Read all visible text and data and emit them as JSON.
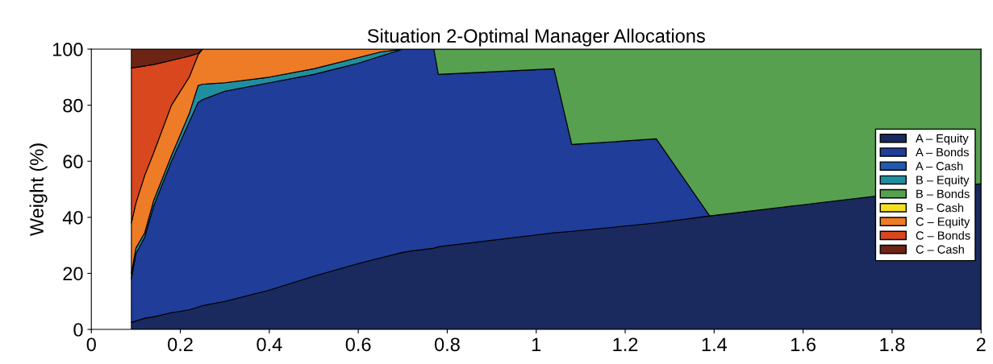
{
  "chart_data": {
    "type": "area",
    "stacked": true,
    "title": "Situation 2-Optimal Manager Allocations",
    "ylabel": "Weight (%)",
    "x": [
      0.09,
      0.1,
      0.12,
      0.14,
      0.18,
      0.22,
      0.24,
      0.25,
      0.3,
      0.4,
      0.5,
      0.6,
      0.65,
      0.7,
      0.72,
      0.77,
      0.78,
      1.04,
      1.08,
      1.27,
      1.39,
      1.6,
      2.0
    ],
    "series": [
      {
        "name": "A – Equity",
        "color": "#1a2a5e",
        "values": [
          2.5,
          3,
          4,
          4.5,
          6,
          7,
          8,
          8.5,
          10,
          14,
          19,
          23.5,
          25.5,
          27.5,
          28,
          29,
          29.5,
          34.5,
          35,
          38,
          40.5,
          44.5,
          52
        ]
      },
      {
        "name": "A – Bonds",
        "color": "#1f3d99",
        "values": [
          15.5,
          24,
          29,
          39.5,
          54,
          67,
          73,
          73.5,
          75,
          74,
          72,
          71.5,
          72,
          72.5,
          72,
          71,
          61.5,
          58.5,
          31,
          30,
          0,
          null,
          null
        ]
      },
      {
        "name": "A – Cash",
        "color": "#2158b0",
        "values": [
          null,
          null,
          null,
          null,
          null,
          null,
          null,
          null,
          null,
          null,
          null,
          null,
          null,
          null,
          null,
          null,
          null,
          null,
          null,
          null,
          null,
          null,
          null
        ]
      },
      {
        "name": "B – Equity",
        "color": "#1f8fa0",
        "values": [
          2,
          2,
          1.5,
          2,
          2,
          3,
          6,
          5.5,
          3,
          2,
          2,
          2,
          1.5,
          0,
          null,
          null,
          null,
          null,
          null,
          null,
          null,
          null,
          null
        ]
      },
      {
        "name": "B – Bonds",
        "color": "#56a050",
        "values": [
          null,
          null,
          null,
          null,
          null,
          null,
          null,
          null,
          null,
          null,
          null,
          null,
          null,
          null,
          null,
          0,
          9,
          7,
          34,
          32,
          59.5,
          55.5,
          48
        ]
      },
      {
        "name": "B – Cash",
        "color": "#f5e020",
        "values": [
          null,
          null,
          null,
          null,
          null,
          null,
          null,
          null,
          null,
          null,
          null,
          null,
          null,
          null,
          null,
          null,
          null,
          null,
          null,
          null,
          null,
          null,
          null
        ]
      },
      {
        "name": "C – Equity",
        "color": "#ee7b25",
        "values": [
          18,
          16,
          20.5,
          17,
          18,
          13,
          11,
          12.5,
          12,
          10,
          7,
          3,
          1,
          0,
          null,
          null,
          null,
          null,
          null,
          null,
          null,
          null,
          null
        ]
      },
      {
        "name": "C – Bonds",
        "color": "#d9471f",
        "values": [
          55.3,
          48.5,
          39,
          31.5,
          16,
          7.5,
          0.5,
          0,
          null,
          null,
          null,
          null,
          null,
          null,
          null,
          null,
          null,
          null,
          null,
          null,
          null,
          null,
          null
        ]
      },
      {
        "name": "C – Cash",
        "color": "#6e2414",
        "values": [
          6.7,
          6.5,
          6,
          5.5,
          4,
          2.5,
          1.5,
          0,
          null,
          null,
          null,
          null,
          null,
          null,
          null,
          null,
          null,
          null,
          null,
          null,
          null,
          null,
          null
        ]
      }
    ],
    "xlim": [
      0,
      2
    ],
    "ylim": [
      0,
      100
    ],
    "xticks": [
      0,
      0.2,
      0.4,
      0.6,
      0.8,
      1,
      1.2,
      1.4,
      1.6,
      1.8,
      2
    ],
    "yticks": [
      0,
      20,
      40,
      60,
      80,
      100
    ],
    "grid": false,
    "legend": "right"
  }
}
